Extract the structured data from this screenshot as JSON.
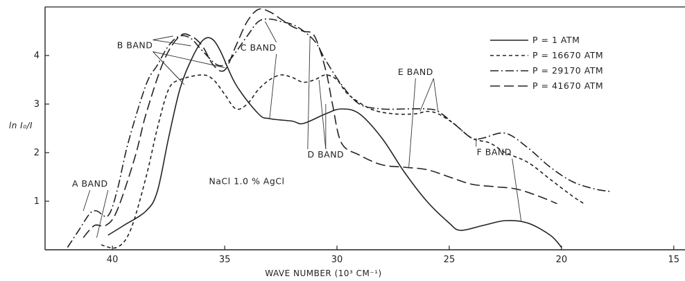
{
  "chart_data": {
    "type": "line",
    "xlabel": "WAVE NUMBER (10³ CM⁻¹)",
    "ylabel": "ln I₀/I",
    "xlim": [
      43,
      14.5
    ],
    "ylim": [
      0,
      5
    ],
    "x_ticks": [
      40,
      35,
      30,
      25,
      20,
      15
    ],
    "y_ticks": [
      1,
      2,
      3,
      4
    ],
    "grid": false,
    "legend_position": "top-right",
    "sample_label": "NaCl 1.0 % AgCl",
    "series": [
      {
        "name": "P = 1 ATM",
        "style": "solid",
        "points": [
          [
            40.2,
            0.3
          ],
          [
            39.5,
            0.5
          ],
          [
            38.5,
            0.8
          ],
          [
            38.0,
            1.2
          ],
          [
            37.5,
            2.3
          ],
          [
            37.0,
            3.3
          ],
          [
            36.5,
            3.9
          ],
          [
            36.0,
            4.3
          ],
          [
            35.6,
            4.35
          ],
          [
            35.2,
            4.1
          ],
          [
            34.5,
            3.4
          ],
          [
            33.5,
            2.8
          ],
          [
            33.0,
            2.7
          ],
          [
            32.0,
            2.65
          ],
          [
            31.5,
            2.6
          ],
          [
            30.5,
            2.8
          ],
          [
            29.8,
            2.9
          ],
          [
            29.0,
            2.8
          ],
          [
            28.0,
            2.3
          ],
          [
            27.0,
            1.6
          ],
          [
            26.0,
            1.0
          ],
          [
            25.0,
            0.55
          ],
          [
            24.5,
            0.4
          ],
          [
            23.5,
            0.5
          ],
          [
            22.5,
            0.6
          ],
          [
            21.5,
            0.55
          ],
          [
            20.5,
            0.3
          ],
          [
            20.0,
            0.05
          ]
        ]
      },
      {
        "name": "P = 16670 ATM",
        "style": "dashed-short",
        "points": [
          [
            40.5,
            0.1
          ],
          [
            39.8,
            0.05
          ],
          [
            39.2,
            0.4
          ],
          [
            38.5,
            1.5
          ],
          [
            38.0,
            2.5
          ],
          [
            37.5,
            3.3
          ],
          [
            37.0,
            3.5
          ],
          [
            36.0,
            3.6
          ],
          [
            35.5,
            3.5
          ],
          [
            35.0,
            3.2
          ],
          [
            34.5,
            2.9
          ],
          [
            34.0,
            3.0
          ],
          [
            33.5,
            3.3
          ],
          [
            33.0,
            3.5
          ],
          [
            32.5,
            3.6
          ],
          [
            32.0,
            3.55
          ],
          [
            31.5,
            3.45
          ],
          [
            31.0,
            3.5
          ],
          [
            30.5,
            3.6
          ],
          [
            30.0,
            3.5
          ],
          [
            29.5,
            3.2
          ],
          [
            28.5,
            2.9
          ],
          [
            27.5,
            2.8
          ],
          [
            26.5,
            2.8
          ],
          [
            26.0,
            2.85
          ],
          [
            25.5,
            2.8
          ],
          [
            24.8,
            2.6
          ],
          [
            24.0,
            2.3
          ],
          [
            23.2,
            2.2
          ],
          [
            22.5,
            2.0
          ],
          [
            21.5,
            1.8
          ],
          [
            20.5,
            1.45
          ],
          [
            19.5,
            1.1
          ],
          [
            19.0,
            0.95
          ]
        ]
      },
      {
        "name": "P = 29170 ATM",
        "style": "dash-dot",
        "points": [
          [
            42.0,
            0.05
          ],
          [
            41.5,
            0.4
          ],
          [
            41.0,
            0.75
          ],
          [
            40.7,
            0.8
          ],
          [
            40.2,
            0.7
          ],
          [
            39.8,
            1.2
          ],
          [
            39.3,
            2.2
          ],
          [
            38.5,
            3.4
          ],
          [
            38.0,
            3.8
          ],
          [
            37.5,
            4.2
          ],
          [
            37.0,
            4.4
          ],
          [
            36.5,
            4.35
          ],
          [
            36.0,
            4.1
          ],
          [
            35.3,
            3.8
          ],
          [
            34.8,
            3.9
          ],
          [
            34.0,
            4.4
          ],
          [
            33.5,
            4.7
          ],
          [
            33.0,
            4.75
          ],
          [
            32.5,
            4.7
          ],
          [
            31.8,
            4.6
          ],
          [
            31.0,
            4.3
          ],
          [
            30.5,
            3.9
          ],
          [
            29.8,
            3.4
          ],
          [
            29.0,
            3.0
          ],
          [
            28.0,
            2.9
          ],
          [
            27.0,
            2.9
          ],
          [
            26.0,
            2.9
          ],
          [
            25.5,
            2.85
          ],
          [
            24.8,
            2.6
          ],
          [
            24.0,
            2.3
          ],
          [
            23.5,
            2.3
          ],
          [
            22.5,
            2.4
          ],
          [
            21.5,
            2.1
          ],
          [
            20.5,
            1.7
          ],
          [
            19.5,
            1.4
          ],
          [
            18.5,
            1.25
          ],
          [
            17.8,
            1.2
          ]
        ]
      },
      {
        "name": "P = 41670 ATM",
        "style": "dashed-long",
        "points": [
          [
            41.3,
            0.25
          ],
          [
            40.8,
            0.5
          ],
          [
            40.3,
            0.5
          ],
          [
            39.8,
            0.8
          ],
          [
            39.0,
            1.9
          ],
          [
            38.5,
            2.8
          ],
          [
            37.7,
            3.9
          ],
          [
            37.0,
            4.4
          ],
          [
            36.5,
            4.4
          ],
          [
            36.0,
            4.2
          ],
          [
            35.5,
            3.8
          ],
          [
            35.0,
            3.7
          ],
          [
            34.5,
            4.2
          ],
          [
            34.0,
            4.7
          ],
          [
            33.5,
            4.95
          ],
          [
            33.0,
            4.9
          ],
          [
            32.5,
            4.75
          ],
          [
            32.0,
            4.6
          ],
          [
            31.5,
            4.5
          ],
          [
            31.0,
            4.4
          ],
          [
            30.5,
            3.7
          ],
          [
            30.2,
            3.0
          ],
          [
            29.8,
            2.2
          ],
          [
            29.0,
            1.95
          ],
          [
            28.0,
            1.75
          ],
          [
            27.0,
            1.7
          ],
          [
            26.0,
            1.65
          ],
          [
            25.0,
            1.5
          ],
          [
            24.0,
            1.35
          ],
          [
            23.0,
            1.3
          ],
          [
            22.0,
            1.25
          ],
          [
            21.0,
            1.1
          ],
          [
            20.2,
            0.95
          ]
        ]
      }
    ],
    "annotations": [
      {
        "text": "A BAND",
        "x": 41.0,
        "y": 1.3,
        "pointers": [
          [
            41.3,
            0.8
          ],
          [
            40.7,
            0.25
          ]
        ]
      },
      {
        "text": "B BAND",
        "x": 39.0,
        "y": 4.15,
        "pointers": [
          [
            37.3,
            4.4
          ],
          [
            36.5,
            4.2
          ],
          [
            35.0,
            3.75
          ],
          [
            37.0,
            3.5
          ],
          [
            36.8,
            3.4
          ]
        ]
      },
      {
        "text": "C BAND",
        "x": 33.5,
        "y": 4.1,
        "pointers": [
          [
            33.2,
            4.7
          ],
          [
            33.0,
            2.7
          ]
        ]
      },
      {
        "text": "D BAND",
        "x": 30.5,
        "y": 1.9,
        "pointers": [
          [
            31.2,
            4.4
          ],
          [
            30.8,
            3.5
          ],
          [
            30.5,
            3.0
          ]
        ]
      },
      {
        "text": "E BAND",
        "x": 26.5,
        "y": 3.6,
        "pointers": [
          [
            26.8,
            1.7
          ],
          [
            26.3,
            2.85
          ],
          [
            25.5,
            2.85
          ]
        ]
      },
      {
        "text": "F BAND",
        "x": 23.0,
        "y": 1.95,
        "pointers": [
          [
            23.8,
            2.3
          ],
          [
            21.8,
            0.6
          ]
        ]
      }
    ]
  }
}
